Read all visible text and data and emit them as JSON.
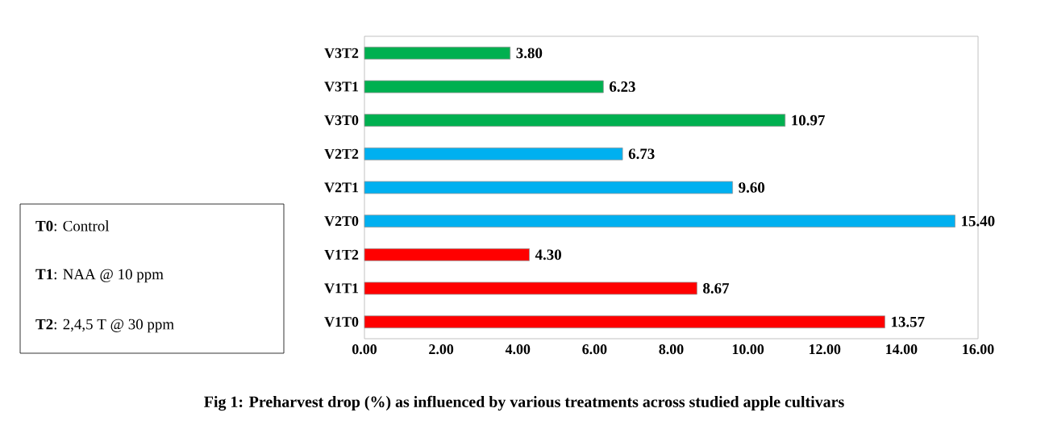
{
  "chart_data": {
    "type": "bar",
    "orientation": "horizontal",
    "title": "Fig 1: Preharvest drop (%) as influenced by various treatments across studied apple cultivars",
    "categories": [
      "V3T2",
      "V3T1",
      "V3T0",
      "V2T2",
      "V2T1",
      "V2T0",
      "V1T2",
      "V1T1",
      "V1T0"
    ],
    "values": [
      3.8,
      6.23,
      10.97,
      6.73,
      9.6,
      15.4,
      4.3,
      8.67,
      13.57
    ],
    "value_labels": [
      "3.80",
      "6.23",
      "10.97",
      "6.73",
      "9.60",
      "15.40",
      "4.30",
      "8.67",
      "13.57"
    ],
    "colors": [
      "#00b050",
      "#00b050",
      "#00b050",
      "#00b0f0",
      "#00b0f0",
      "#00b0f0",
      "#ff0000",
      "#ff0000",
      "#ff0000"
    ],
    "xlim": [
      0,
      16
    ],
    "xticks": [
      {
        "value": 0,
        "label": "0.00"
      },
      {
        "value": 2,
        "label": "2.00"
      },
      {
        "value": 4,
        "label": "4.00"
      },
      {
        "value": 6,
        "label": "6.00"
      },
      {
        "value": 8,
        "label": "8.00"
      },
      {
        "value": 10,
        "label": "10.00"
      },
      {
        "value": 12,
        "label": "12.00"
      },
      {
        "value": 14,
        "label": "14.00"
      },
      {
        "value": 16,
        "label": "16.00"
      }
    ],
    "annotations": [
      "**T0**: Control",
      "**T1**: NAA @ 10 ppm",
      "**T2**: 2,4,5 T @ 30 ppm"
    ]
  }
}
